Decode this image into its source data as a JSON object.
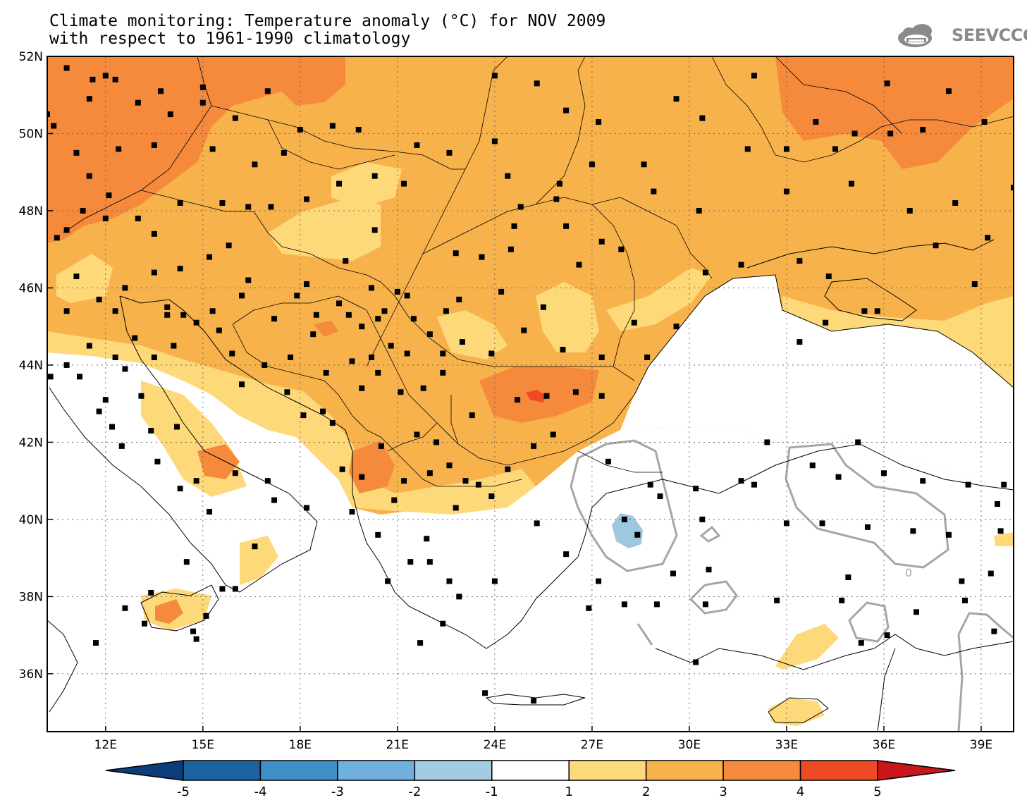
{
  "title": {
    "line1": "Climate monitoring: Temperature anomaly (°C) for NOV 2009",
    "line2": "with respect to 1961-1990 climatology"
  },
  "logo": {
    "text": "SEEVCCC",
    "icon": "cloud-icon"
  },
  "map": {
    "lon_range": [
      10.2,
      40.0
    ],
    "lat_range": [
      34.5,
      52.0
    ],
    "lon_ticks": [
      "12E",
      "15E",
      "18E",
      "21E",
      "24E",
      "27E",
      "30E",
      "33E",
      "36E",
      "39E"
    ],
    "lon_tick_values": [
      12,
      15,
      18,
      21,
      24,
      27,
      30,
      33,
      36,
      39
    ],
    "lat_ticks": [
      "36N",
      "38N",
      "40N",
      "42N",
      "44N",
      "46N",
      "48N",
      "50N",
      "52N"
    ],
    "lat_tick_values": [
      36,
      38,
      40,
      42,
      44,
      46,
      48,
      50,
      52
    ],
    "contour_label": "0",
    "grid": "dotted"
  },
  "colorbar": {
    "labels": [
      "-5",
      "-4",
      "-3",
      "-2",
      "-1",
      "1",
      "2",
      "3",
      "4",
      "5"
    ],
    "colors": [
      "#0b3d7a",
      "#1e63a1",
      "#3f8fc8",
      "#6fb0dc",
      "#a3cbe2",
      "#ffffff",
      "#fdd97a",
      "#f8b24c",
      "#f58a3d",
      "#ef4a26",
      "#c9161d"
    ]
  },
  "palette": {
    "anom_1_2": "#fdd97a",
    "anom_2_3": "#f8b24c",
    "anom_3_4": "#f58a3d",
    "anom_4_5": "#ef4a26",
    "anom_neg": "#9ec7e0",
    "contour": "#a6a6a6"
  },
  "stations": [
    [
      10.2,
      50.5
    ],
    [
      10.4,
      50.2
    ],
    [
      10.8,
      51.7
    ],
    [
      11.6,
      51.4
    ],
    [
      12.0,
      51.5
    ],
    [
      11.5,
      50.9
    ],
    [
      12.3,
      51.4
    ],
    [
      13.0,
      50.8
    ],
    [
      13.7,
      51.1
    ],
    [
      14.0,
      50.5
    ],
    [
      15.0,
      51.2
    ],
    [
      15.0,
      50.8
    ],
    [
      16.0,
      50.4
    ],
    [
      17.0,
      51.1
    ],
    [
      18.0,
      50.1
    ],
    [
      19.0,
      50.2
    ],
    [
      19.8,
      50.1
    ],
    [
      17.5,
      49.5
    ],
    [
      16.6,
      49.2
    ],
    [
      15.3,
      49.6
    ],
    [
      13.5,
      49.7
    ],
    [
      12.4,
      49.6
    ],
    [
      11.1,
      49.5
    ],
    [
      11.5,
      48.9
    ],
    [
      12.1,
      48.4
    ],
    [
      11.3,
      48.0
    ],
    [
      10.8,
      47.5
    ],
    [
      10.5,
      47.3
    ],
    [
      12.0,
      47.8
    ],
    [
      13.0,
      47.8
    ],
    [
      13.5,
      47.4
    ],
    [
      14.3,
      48.2
    ],
    [
      15.6,
      48.2
    ],
    [
      15.8,
      47.1
    ],
    [
      16.4,
      48.1
    ],
    [
      17.1,
      48.1
    ],
    [
      18.2,
      48.3
    ],
    [
      19.2,
      48.7
    ],
    [
      20.3,
      48.9
    ],
    [
      21.2,
      48.7
    ],
    [
      21.6,
      49.7
    ],
    [
      22.6,
      49.5
    ],
    [
      24.0,
      49.8
    ],
    [
      24.4,
      48.9
    ],
    [
      25.9,
      48.3
    ],
    [
      26.2,
      47.6
    ],
    [
      24.5,
      47.0
    ],
    [
      22.8,
      46.9
    ],
    [
      20.3,
      47.5
    ],
    [
      19.4,
      46.7
    ],
    [
      18.2,
      46.1
    ],
    [
      17.9,
      45.8
    ],
    [
      16.4,
      46.2
    ],
    [
      15.2,
      46.8
    ],
    [
      14.3,
      46.5
    ],
    [
      13.5,
      46.4
    ],
    [
      12.6,
      46.0
    ],
    [
      11.1,
      46.3
    ],
    [
      11.8,
      45.7
    ],
    [
      10.8,
      45.4
    ],
    [
      12.3,
      45.4
    ],
    [
      13.9,
      45.5
    ],
    [
      14.4,
      45.3
    ],
    [
      15.3,
      45.4
    ],
    [
      16.2,
      45.8
    ],
    [
      17.2,
      45.2
    ],
    [
      18.5,
      45.3
    ],
    [
      19.5,
      45.3
    ],
    [
      20.4,
      45.2
    ],
    [
      21.3,
      45.8
    ],
    [
      22.5,
      45.4
    ],
    [
      24.2,
      45.9
    ],
    [
      25.5,
      45.5
    ],
    [
      26.1,
      44.4
    ],
    [
      27.3,
      44.2
    ],
    [
      28.7,
      44.2
    ],
    [
      28.3,
      45.1
    ],
    [
      29.6,
      45.0
    ],
    [
      30.5,
      46.4
    ],
    [
      31.6,
      46.6
    ],
    [
      33.4,
      46.7
    ],
    [
      34.3,
      46.3
    ],
    [
      35.4,
      45.4
    ],
    [
      34.2,
      45.1
    ],
    [
      33.4,
      44.6
    ],
    [
      35.8,
      45.4
    ],
    [
      36.8,
      48.0
    ],
    [
      37.6,
      47.1
    ],
    [
      38.8,
      46.1
    ],
    [
      39.2,
      47.3
    ],
    [
      40.0,
      48.6
    ],
    [
      38.2,
      48.2
    ],
    [
      35.0,
      48.7
    ],
    [
      33.0,
      48.5
    ],
    [
      30.3,
      48.0
    ],
    [
      28.9,
      48.5
    ],
    [
      27.9,
      47.0
    ],
    [
      27.3,
      47.2
    ],
    [
      26.6,
      46.6
    ],
    [
      24.6,
      47.6
    ],
    [
      23.6,
      46.8
    ],
    [
      24.8,
      48.1
    ],
    [
      26.0,
      48.7
    ],
    [
      27.0,
      49.2
    ],
    [
      28.6,
      49.2
    ],
    [
      27.2,
      50.3
    ],
    [
      26.2,
      50.6
    ],
    [
      25.3,
      51.3
    ],
    [
      24.0,
      51.5
    ],
    [
      29.6,
      50.9
    ],
    [
      30.4,
      50.4
    ],
    [
      31.8,
      49.6
    ],
    [
      33.0,
      49.6
    ],
    [
      34.5,
      49.6
    ],
    [
      35.1,
      50.0
    ],
    [
      36.2,
      50.0
    ],
    [
      37.2,
      50.1
    ],
    [
      39.1,
      50.3
    ],
    [
      38.0,
      51.1
    ],
    [
      36.1,
      51.3
    ],
    [
      33.9,
      50.3
    ],
    [
      32.0,
      51.5
    ],
    [
      13.1,
      43.2
    ],
    [
      14.2,
      42.4
    ],
    [
      13.4,
      42.3
    ],
    [
      12.2,
      42.4
    ],
    [
      11.8,
      42.8
    ],
    [
      11.2,
      43.7
    ],
    [
      12.0,
      43.1
    ],
    [
      12.6,
      43.9
    ],
    [
      12.9,
      44.7
    ],
    [
      13.5,
      44.2
    ],
    [
      11.5,
      44.5
    ],
    [
      10.8,
      44.0
    ],
    [
      10.3,
      43.7
    ],
    [
      12.5,
      41.9
    ],
    [
      13.6,
      41.5
    ],
    [
      14.8,
      41.0
    ],
    [
      16.0,
      41.2
    ],
    [
      17.0,
      41.0
    ],
    [
      14.3,
      40.8
    ],
    [
      15.2,
      40.2
    ],
    [
      17.2,
      40.5
    ],
    [
      18.2,
      40.3
    ],
    [
      16.6,
      39.3
    ],
    [
      16.0,
      38.2
    ],
    [
      15.6,
      38.2
    ],
    [
      15.1,
      37.5
    ],
    [
      14.7,
      37.1
    ],
    [
      13.4,
      38.1
    ],
    [
      12.6,
      37.7
    ],
    [
      13.2,
      37.3
    ],
    [
      14.8,
      36.9
    ],
    [
      15.1,
      37.5
    ],
    [
      11.7,
      36.8
    ],
    [
      14.5,
      38.9
    ],
    [
      19.3,
      41.3
    ],
    [
      19.9,
      41.1
    ],
    [
      19.6,
      40.2
    ],
    [
      20.5,
      41.9
    ],
    [
      19.0,
      42.5
    ],
    [
      18.7,
      42.8
    ],
    [
      19.9,
      43.4
    ],
    [
      20.4,
      43.8
    ],
    [
      21.1,
      43.3
    ],
    [
      21.6,
      42.2
    ],
    [
      22.2,
      42.0
    ],
    [
      22.6,
      41.4
    ],
    [
      21.2,
      41.0
    ],
    [
      22.0,
      41.2
    ],
    [
      23.3,
      42.7
    ],
    [
      24.7,
      43.1
    ],
    [
      25.6,
      43.2
    ],
    [
      26.5,
      43.3
    ],
    [
      27.3,
      43.2
    ],
    [
      25.8,
      42.2
    ],
    [
      27.5,
      41.5
    ],
    [
      28.0,
      40.0
    ],
    [
      28.8,
      40.9
    ],
    [
      29.1,
      40.6
    ],
    [
      30.2,
      40.8
    ],
    [
      30.4,
      40.0
    ],
    [
      31.6,
      41.0
    ],
    [
      32.4,
      42.0
    ],
    [
      33.8,
      41.4
    ],
    [
      35.2,
      42.0
    ],
    [
      34.6,
      41.1
    ],
    [
      36.0,
      41.2
    ],
    [
      37.2,
      41.0
    ],
    [
      38.6,
      40.9
    ],
    [
      39.7,
      40.9
    ],
    [
      39.5,
      40.4
    ],
    [
      39.6,
      39.7
    ],
    [
      38.0,
      39.6
    ],
    [
      36.9,
      39.7
    ],
    [
      35.5,
      39.8
    ],
    [
      34.1,
      39.9
    ],
    [
      33.0,
      39.9
    ],
    [
      32.0,
      40.9
    ],
    [
      28.4,
      39.6
    ],
    [
      29.5,
      38.6
    ],
    [
      30.6,
      38.7
    ],
    [
      29.0,
      37.8
    ],
    [
      30.5,
      37.8
    ],
    [
      32.7,
      37.9
    ],
    [
      34.9,
      38.5
    ],
    [
      34.7,
      37.9
    ],
    [
      36.1,
      37.0
    ],
    [
      37.0,
      37.6
    ],
    [
      38.5,
      37.9
    ],
    [
      39.4,
      37.1
    ],
    [
      38.4,
      38.4
    ],
    [
      39.3,
      38.6
    ],
    [
      35.3,
      36.8
    ],
    [
      30.2,
      36.3
    ],
    [
      26.9,
      37.7
    ],
    [
      24.0,
      38.4
    ],
    [
      22.6,
      38.4
    ],
    [
      22.9,
      38.0
    ],
    [
      21.4,
      38.9
    ],
    [
      20.7,
      38.4
    ],
    [
      22.4,
      37.3
    ],
    [
      21.7,
      36.8
    ],
    [
      23.7,
      35.5
    ],
    [
      25.2,
      35.3
    ],
    [
      27.2,
      38.4
    ],
    [
      26.2,
      39.1
    ],
    [
      25.3,
      39.9
    ],
    [
      23.9,
      40.6
    ],
    [
      23.1,
      41.0
    ],
    [
      22.8,
      40.3
    ],
    [
      20.9,
      40.5
    ],
    [
      21.9,
      39.5
    ],
    [
      22.0,
      38.9
    ],
    [
      20.4,
      39.6
    ],
    [
      28.0,
      37.8
    ],
    [
      25.2,
      41.9
    ],
    [
      24.4,
      41.3
    ],
    [
      23.5,
      40.9
    ],
    [
      16.2,
      43.5
    ],
    [
      18.8,
      43.8
    ],
    [
      19.6,
      44.1
    ],
    [
      20.2,
      44.2
    ],
    [
      21.3,
      44.3
    ],
    [
      22.0,
      44.8
    ],
    [
      23.0,
      44.6
    ],
    [
      22.4,
      43.8
    ],
    [
      20.8,
      44.5
    ],
    [
      19.9,
      45.0
    ],
    [
      21.8,
      43.4
    ],
    [
      19.2,
      45.6
    ],
    [
      20.2,
      46.0
    ],
    [
      21.0,
      45.9
    ],
    [
      22.9,
      45.7
    ],
    [
      24.9,
      44.9
    ],
    [
      23.9,
      44.3
    ],
    [
      22.4,
      44.3
    ],
    [
      18.4,
      44.8
    ],
    [
      17.7,
      44.2
    ],
    [
      16.9,
      44.0
    ],
    [
      15.9,
      44.3
    ],
    [
      15.5,
      44.9
    ],
    [
      14.8,
      45.1
    ],
    [
      14.1,
      44.5
    ],
    [
      13.9,
      45.3
    ],
    [
      12.3,
      44.2
    ],
    [
      18.1,
      42.7
    ],
    [
      17.6,
      43.3
    ],
    [
      20.6,
      45.4
    ],
    [
      21.5,
      45.2
    ]
  ]
}
